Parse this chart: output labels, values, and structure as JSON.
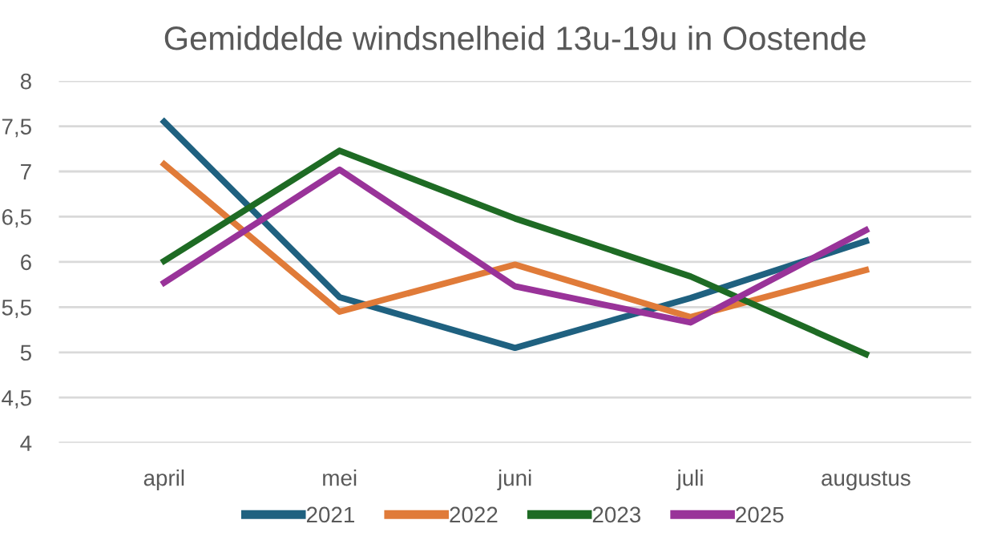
{
  "chart_data": {
    "type": "line",
    "title": "Gemiddelde windsnelheid 13u-19u in Oostende",
    "categories": [
      "april",
      "mei",
      "juni",
      "juli",
      "augustus"
    ],
    "series": [
      {
        "name": "2021",
        "color": "#1f6180",
        "values": [
          7.55,
          5.61,
          5.05,
          5.6,
          6.23
        ]
      },
      {
        "name": "2022",
        "color": "#e07b39",
        "values": [
          7.08,
          5.45,
          5.97,
          5.39,
          5.91
        ]
      },
      {
        "name": "2023",
        "color": "#1e6b24",
        "values": [
          6.01,
          7.23,
          6.48,
          5.84,
          4.98
        ]
      },
      {
        "name": "2025",
        "color": "#993399",
        "values": [
          5.77,
          7.02,
          5.73,
          5.33,
          6.35
        ]
      }
    ],
    "ylim": [
      4,
      8
    ],
    "yticks": [
      {
        "value": 4,
        "label": "4"
      },
      {
        "value": 4.5,
        "label": "4,5"
      },
      {
        "value": 5,
        "label": "5"
      },
      {
        "value": 5.5,
        "label": "5,5"
      },
      {
        "value": 6,
        "label": "6"
      },
      {
        "value": 6.5,
        "label": "6,5"
      },
      {
        "value": 7,
        "label": "7"
      },
      {
        "value": 7.5,
        "label": "7,5"
      },
      {
        "value": 8,
        "label": "8"
      }
    ],
    "grid": "y",
    "legend": "bottom",
    "marker": "none",
    "line_style": "solid"
  }
}
